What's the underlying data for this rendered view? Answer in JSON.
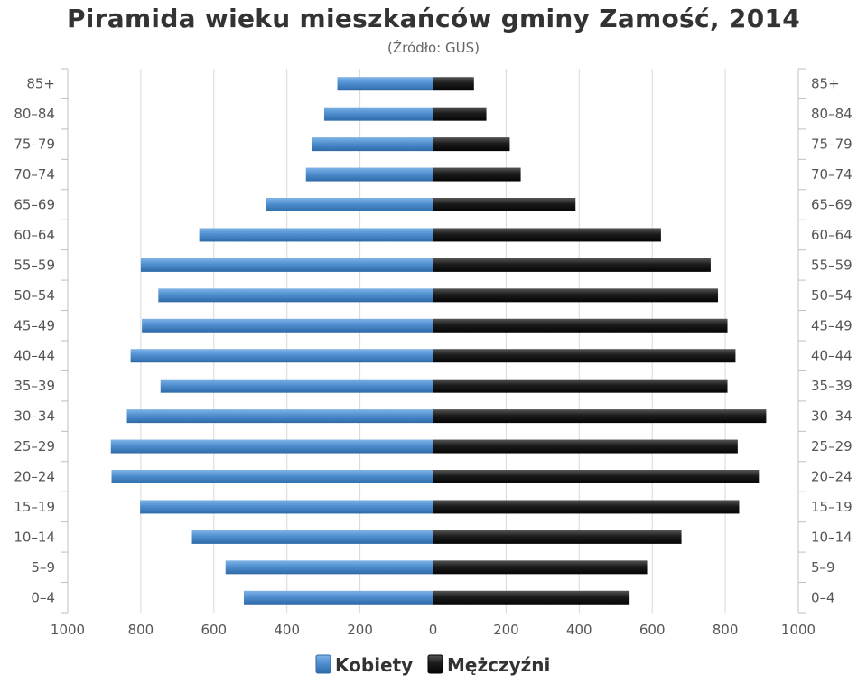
{
  "title": "Piramida wieku mieszkańców gminy Zamość, 2014",
  "subtitle": "(Źródło: GUS)",
  "colors": {
    "female": "#4f8fd0",
    "male": "#1b1b1b",
    "grid": "#d8d8d8",
    "axis": "#c0c0c0"
  },
  "chart_data": {
    "type": "bar",
    "orientation": "horizontal-population-pyramid",
    "title": "Piramida wieku mieszkańców gminy Zamość, 2014",
    "subtitle": "(Źródło: GUS)",
    "categories": [
      "85+",
      "80–84",
      "75–79",
      "70–74",
      "65–69",
      "60–64",
      "55–59",
      "50–54",
      "45–49",
      "40–44",
      "35–39",
      "30–34",
      "25–29",
      "20–24",
      "15–19",
      "10–14",
      "5–9",
      "0–4"
    ],
    "x_tick_labels": [
      "1000",
      "800",
      "600",
      "400",
      "200",
      "0",
      "200",
      "400",
      "600",
      "800",
      "1000"
    ],
    "xlim": [
      -1000,
      1000
    ],
    "grid": true,
    "legend": "bottom-center",
    "series": [
      {
        "name": "Kobiety",
        "side": "left",
        "color": "#4f8fd0",
        "values": [
          262,
          298,
          332,
          348,
          458,
          640,
          800,
          752,
          797,
          828,
          746,
          838,
          882,
          880,
          802,
          660,
          568,
          518
        ]
      },
      {
        "name": "Mężczyźni",
        "side": "right",
        "color": "#1b1b1b",
        "values": [
          112,
          146,
          210,
          240,
          390,
          624,
          760,
          780,
          806,
          828,
          806,
          912,
          834,
          892,
          838,
          680,
          586,
          538
        ]
      }
    ]
  }
}
